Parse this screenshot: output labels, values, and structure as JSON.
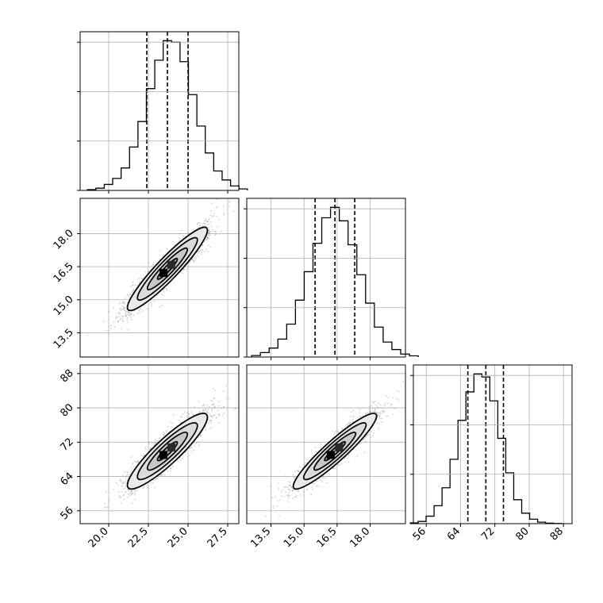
{
  "colors": {
    "ink": "#000000",
    "grid": "#b0b0b0",
    "points": "#7f7f7f",
    "fill_light": "#d9d9d9",
    "fill_mid": "#9a9a9a",
    "fill_dark": "#2b2b2b"
  },
  "chart_data": {
    "type": "corner",
    "grid": true,
    "parameters": [
      {
        "range": [
          18.2,
          28.2
        ],
        "ticks": [
          20.0,
          22.5,
          25.0,
          27.5
        ],
        "tick_labels": [
          "20.0",
          "22.5",
          "25.0",
          "27.5"
        ],
        "quantiles": [
          22.4,
          23.7,
          25.0
        ],
        "mean": 23.7,
        "sd": 1.2
      },
      {
        "range": [
          12.4,
          19.6
        ],
        "ticks": [
          13.5,
          15.0,
          16.5,
          18.0
        ],
        "tick_labels": [
          "13.5",
          "15.0",
          "16.5",
          "18.0"
        ],
        "quantiles": [
          15.5,
          16.4,
          17.3
        ],
        "mean": 16.4,
        "sd": 0.9
      },
      {
        "range": [
          53.0,
          90.0
        ],
        "ticks": [
          56,
          64,
          72,
          80,
          88
        ],
        "tick_labels": [
          "56",
          "64",
          "72",
          "80",
          "88"
        ],
        "quantiles": [
          65.7,
          69.9,
          74.0
        ],
        "mean": 69.9,
        "sd": 4.2
      }
    ],
    "correlation": 0.93,
    "histograms": [
      {
        "counts": [
          0.5,
          1.5,
          4,
          8,
          15,
          29,
          46,
          68,
          87,
          100,
          99,
          86,
          64,
          43,
          25,
          13,
          7,
          3,
          1
        ]
      },
      {
        "counts": [
          1,
          3,
          6,
          12,
          22,
          38,
          57,
          76,
          93,
          100,
          91,
          75,
          55,
          36,
          20,
          10,
          5,
          2,
          0.8
        ]
      },
      {
        "counts": [
          0.5,
          1.5,
          5,
          12,
          24,
          43,
          69,
          88,
          100,
          98,
          82,
          57,
          34,
          16,
          7,
          3,
          1,
          0.3,
          0.1
        ]
      }
    ],
    "contour_levels_sigma": [
      0.5,
      1.0,
      1.5,
      2.0
    ]
  }
}
